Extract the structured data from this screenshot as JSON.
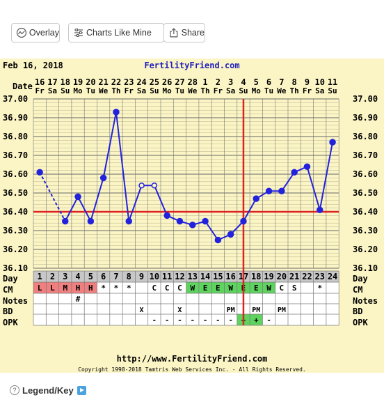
{
  "toolbar": {
    "overlay_label": "Overlay",
    "charts_like_mine_label": "Charts Like Mine",
    "share_label": "Share",
    "overlay_icon": "chart-line-icon",
    "charts_icon": "sliders-icon",
    "share_icon": "share-icon"
  },
  "chart": {
    "start_date": "Feb 16, 2018",
    "site_title": "FertilityFriend.com",
    "footer_url": "http://www.FertilityFriend.com",
    "copyright": "Copyright 1998-2018 Tamtris Web Services Inc. - All Rights Reserved.",
    "row_labels": {
      "date": "Date",
      "day": "Day",
      "cm": "CM",
      "notes": "Notes",
      "bd": "BD",
      "opk": "OPK"
    },
    "colors": {
      "line": "#2222dd",
      "coverline": "#dd2222",
      "background": "#fbf5c5",
      "cm_red": "#f08080",
      "cm_green": "#5fd35f",
      "title_blue": "#2222bb"
    }
  },
  "chart_data": {
    "type": "line",
    "y_ticks": [
      "37.00",
      "36.90",
      "36.80",
      "36.70",
      "36.60",
      "36.50",
      "36.40",
      "36.30",
      "36.20",
      "36.10"
    ],
    "ylim": [
      36.1,
      37.0
    ],
    "dates": [
      "16",
      "17",
      "18",
      "19",
      "20",
      "21",
      "22",
      "23",
      "24",
      "25",
      "26",
      "27",
      "28",
      "1",
      "2",
      "3",
      "4",
      "5",
      "6",
      "7",
      "8",
      "9",
      "10",
      "11"
    ],
    "weekdays": [
      "Fr",
      "Sa",
      "Su",
      "Mo",
      "Tu",
      "We",
      "Th",
      "Fr",
      "Sa",
      "Su",
      "Mo",
      "Tu",
      "We",
      "Th",
      "Fr",
      "Sa",
      "Su",
      "Mo",
      "Tu",
      "We",
      "Th",
      "Fr",
      "Sa",
      "Su"
    ],
    "days": [
      "1",
      "2",
      "3",
      "4",
      "5",
      "6",
      "7",
      "8",
      "9",
      "10",
      "11",
      "12",
      "13",
      "14",
      "15",
      "16",
      "17",
      "18",
      "19",
      "20",
      "21",
      "22",
      "23",
      "24"
    ],
    "temperatures": [
      36.61,
      null,
      36.35,
      36.48,
      36.35,
      36.58,
      36.93,
      36.35,
      36.54,
      36.54,
      36.38,
      36.35,
      36.33,
      36.35,
      36.25,
      36.28,
      36.35,
      36.47,
      36.51,
      36.51,
      36.61,
      36.64,
      36.41,
      36.77
    ],
    "open_points": [
      false,
      false,
      false,
      false,
      false,
      false,
      false,
      false,
      true,
      true,
      false,
      false,
      false,
      false,
      false,
      false,
      false,
      false,
      false,
      false,
      false,
      false,
      false,
      false
    ],
    "coverline": 36.4,
    "ovulation_day": 17,
    "cm": [
      "L",
      "L",
      "M",
      "H",
      "H",
      "*",
      "*",
      "*",
      "",
      "C",
      "C",
      "C",
      "W",
      "E",
      "E",
      "W",
      "E",
      "E",
      "W",
      "C",
      "S",
      "",
      "*",
      ""
    ],
    "notes": [
      "",
      "",
      "",
      "#",
      "",
      "",
      "",
      "",
      "",
      "",
      "",
      "",
      "",
      "",
      "",
      "",
      "",
      "",
      "",
      "",
      "",
      "",
      "",
      ""
    ],
    "bd": [
      "",
      "",
      "",
      "",
      "",
      "",
      "",
      "",
      "X",
      "",
      "",
      "X",
      "",
      "",
      "",
      "PM",
      "",
      "PM",
      "",
      "PM",
      "",
      "",
      "",
      ""
    ],
    "opk": [
      "",
      "",
      "",
      "",
      "",
      "",
      "",
      "",
      "",
      "-",
      "-",
      "-",
      "-",
      "-",
      "-",
      "-",
      "+",
      "+",
      "-",
      "",
      "",
      "",
      "",
      ""
    ]
  },
  "legend": {
    "label": "Legend/Key"
  }
}
